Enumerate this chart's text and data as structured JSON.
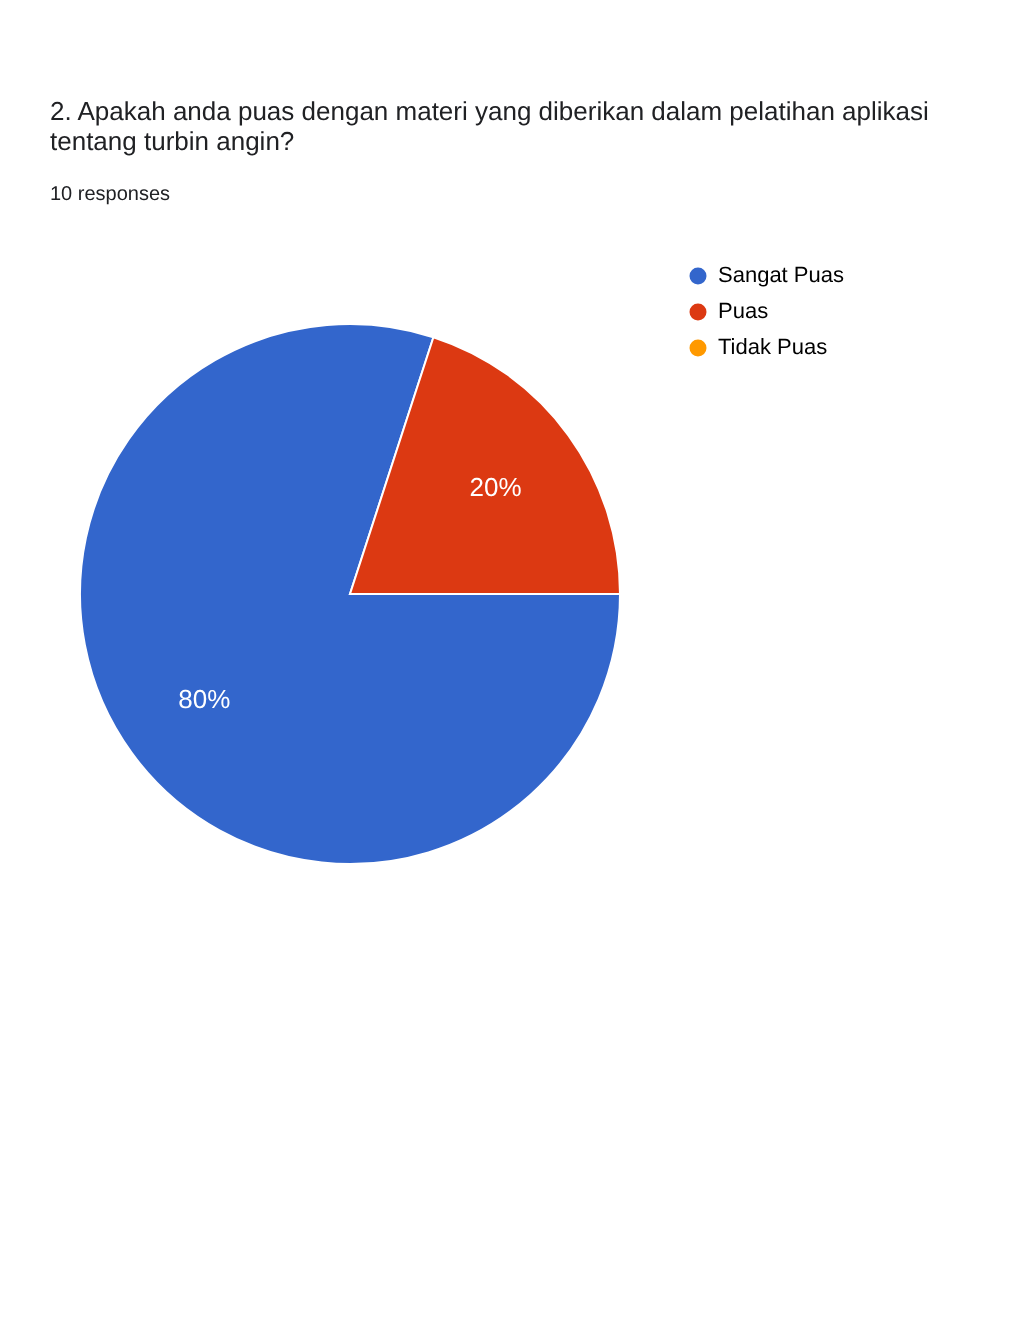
{
  "chart_data": {
    "type": "pie",
    "title": [
      "2. Apakah anda puas dengan materi yang diberikan dalam pelatihan aplikasi",
      "tentang turbin angin?"
    ],
    "subtitle": "10 responses",
    "categories": [
      "Sangat Puas",
      "Puas",
      "Tidak Puas"
    ],
    "values": [
      80,
      20,
      0
    ],
    "colors": [
      "#3366cc",
      "#dc3912",
      "#ff9900"
    ],
    "value_labels": [
      "80%",
      "20%",
      null
    ],
    "legend": "top right"
  }
}
